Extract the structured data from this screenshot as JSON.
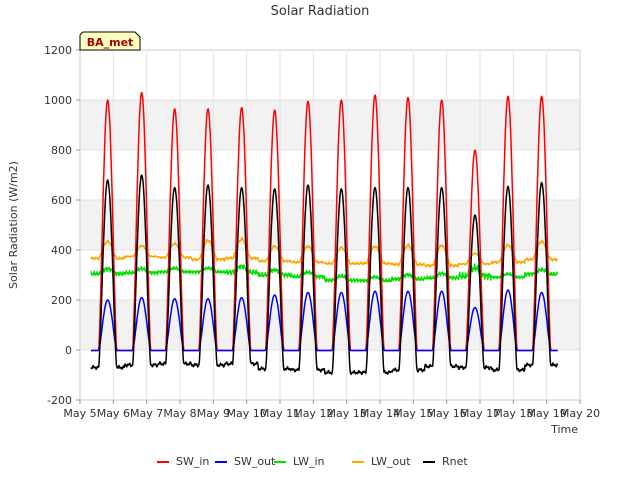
{
  "chart_data": {
    "type": "line",
    "title": "Solar Radiation",
    "xlabel": "Time",
    "ylabel": "Solar Radiation (W/m2)",
    "badge": "BA_met",
    "xlim": [
      5,
      20
    ],
    "ylim": [
      -200,
      1200
    ],
    "x_ticks": [
      5,
      6,
      7,
      8,
      9,
      10,
      11,
      12,
      13,
      14,
      15,
      16,
      17,
      18,
      19,
      20
    ],
    "x_tick_labels": [
      "May 5",
      "May 6",
      "May 7",
      "May 8",
      "May 9",
      "May 10",
      "May 11",
      "May 12",
      "May 13",
      "May 14",
      "May 15",
      "May 16",
      "May 17",
      "May 18",
      "May 19",
      "May 20"
    ],
    "y_ticks": [
      -200,
      0,
      200,
      400,
      600,
      800,
      1000,
      1200
    ],
    "y_tick_labels": [
      "-200",
      "0",
      "200",
      "400",
      "600",
      "800",
      "1000",
      "1200"
    ],
    "x_range_data": [
      5.33,
      19.33
    ],
    "day_centers": [
      5.83,
      6.85,
      7.84,
      8.84,
      9.85,
      10.84,
      11.84,
      12.84,
      13.85,
      14.84,
      15.85,
      16.85,
      17.84,
      18.85
    ],
    "legend_position": "bottom-center",
    "series": [
      {
        "name": "SW_in",
        "color": "#ff0000",
        "daily_peaks": [
          1000,
          1030,
          965,
          965,
          970,
          960,
          995,
          1000,
          1020,
          1010,
          1000,
          800,
          1015,
          1015
        ]
      },
      {
        "name": "SW_out",
        "color": "#0000ff",
        "daily_peaks": [
          200,
          210,
          205,
          205,
          210,
          220,
          230,
          230,
          235,
          235,
          235,
          170,
          240,
          230
        ]
      },
      {
        "name": "LW_in",
        "color": "#00e000",
        "daily_min": [
          295,
          300,
          305,
          305,
          300,
          290,
          285,
          270,
          270,
          275,
          280,
          280,
          285,
          295
        ],
        "daily_max": [
          335,
          335,
          335,
          335,
          345,
          330,
          320,
          305,
          300,
          310,
          315,
          345,
          310,
          330
        ]
      },
      {
        "name": "LW_out",
        "color": "#ffa500",
        "daily_min": [
          360,
          370,
          365,
          355,
          360,
          350,
          345,
          340,
          340,
          335,
          330,
          340,
          345,
          355
        ],
        "daily_max": [
          440,
          420,
          430,
          445,
          450,
          420,
          420,
          415,
          420,
          425,
          425,
          390,
          425,
          440
        ]
      },
      {
        "name": "Rnet",
        "color": "#000000",
        "daily_peaks": [
          680,
          700,
          650,
          660,
          650,
          645,
          660,
          645,
          650,
          650,
          650,
          540,
          655,
          670
        ],
        "night_min": [
          -70,
          -60,
          -55,
          -60,
          -55,
          -75,
          -80,
          -90,
          -90,
          -80,
          -65,
          -70,
          -80,
          -60
        ]
      }
    ]
  }
}
